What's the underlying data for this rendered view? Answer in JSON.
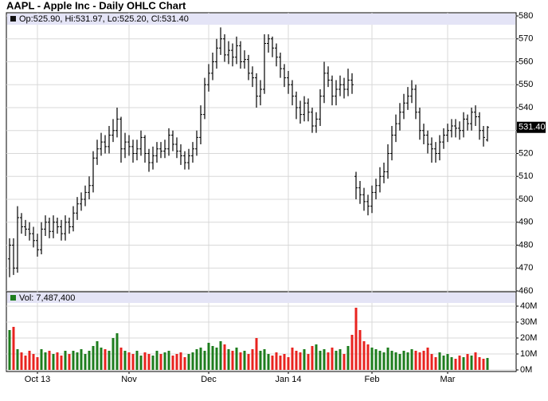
{
  "chart_data": [
    {
      "type": "ohlc",
      "title": "AAPL - Apple Inc - Daily OHLC Chart",
      "info": "Op:525.90, Hi:531.97, Lo:525.20, Cl:531.40",
      "last_label": "531.40",
      "ylim": [
        460,
        580
      ],
      "yticks": [
        460,
        470,
        480,
        490,
        500,
        510,
        520,
        530,
        540,
        550,
        560,
        570,
        580
      ],
      "color": "#000000",
      "grid": true,
      "open": [
        474,
        480,
        470,
        492,
        488,
        487,
        485,
        482,
        478,
        487,
        490,
        486,
        490,
        488,
        485,
        490,
        488,
        494,
        498,
        500,
        503,
        506,
        518,
        522,
        525,
        523,
        528,
        530,
        535,
        522,
        525,
        523,
        520,
        522,
        527,
        520,
        516,
        519,
        522,
        521,
        522,
        528,
        524,
        521,
        519,
        516,
        519,
        522,
        527,
        537,
        550,
        555,
        560,
        566,
        570,
        563,
        565,
        562,
        567,
        560,
        561,
        555,
        553,
        545,
        548,
        568,
        570,
        566,
        562,
        557,
        553,
        550,
        545,
        540,
        537,
        542,
        538,
        532,
        535,
        545,
        555,
        552,
        545,
        548,
        550,
        548,
        552,
        510,
        505,
        502,
        499,
        497,
        503,
        506,
        510,
        512,
        520,
        528,
        533,
        538,
        542,
        545,
        548,
        538,
        530,
        528,
        524,
        522,
        520,
        525,
        528,
        530,
        532,
        531,
        530,
        535,
        533,
        538,
        536,
        530,
        525.9
      ],
      "high": [
        483,
        483,
        497,
        494,
        491,
        490,
        488,
        485,
        490,
        493,
        492,
        493,
        492,
        491,
        493,
        492,
        497,
        501,
        503,
        506,
        510,
        521,
        526,
        529,
        528,
        532,
        535,
        540,
        536,
        529,
        528,
        526,
        526,
        530,
        528,
        522,
        523,
        525,
        525,
        526,
        531,
        530,
        527,
        524,
        521,
        522,
        525,
        530,
        541,
        553,
        559,
        564,
        570,
        575,
        572,
        569,
        568,
        571,
        569,
        565,
        563,
        558,
        555,
        552,
        572,
        572,
        571,
        568,
        564,
        559,
        556,
        552,
        547,
        543,
        545,
        544,
        540,
        538,
        548,
        560,
        558,
        554,
        552,
        554,
        553,
        557,
        555,
        512,
        508,
        505,
        502,
        506,
        509,
        514,
        516,
        524,
        532,
        537,
        542,
        546,
        549,
        552,
        550,
        540,
        533,
        530,
        527,
        525,
        528,
        531,
        533,
        535,
        535,
        534,
        538,
        537,
        540,
        541,
        538,
        532,
        531.97
      ],
      "low": [
        466,
        467,
        468,
        485,
        484,
        482,
        479,
        475,
        476,
        484,
        483,
        483,
        485,
        482,
        482,
        485,
        486,
        491,
        495,
        497,
        500,
        503,
        515,
        519,
        520,
        520,
        525,
        527,
        516,
        518,
        519,
        516,
        517,
        519,
        516,
        512,
        513,
        516,
        518,
        518,
        519,
        521,
        518,
        515,
        513,
        513,
        516,
        519,
        524,
        535,
        547,
        552,
        557,
        563,
        560,
        559,
        558,
        559,
        557,
        557,
        552,
        549,
        540,
        541,
        546,
        564,
        562,
        558,
        553,
        549,
        546,
        541,
        535,
        533,
        534,
        534,
        529,
        529,
        532,
        542,
        549,
        541,
        541,
        545,
        544,
        545,
        546,
        500,
        498,
        495,
        493,
        494,
        500,
        503,
        507,
        509,
        517,
        525,
        530,
        535,
        539,
        542,
        535,
        526,
        524,
        520,
        516,
        516,
        517,
        522,
        525,
        527,
        527,
        526,
        527,
        530,
        530,
        532,
        526,
        523,
        525.2
      ],
      "close": [
        480,
        470,
        492,
        488,
        487,
        485,
        482,
        478,
        487,
        490,
        486,
        490,
        488,
        485,
        490,
        488,
        494,
        498,
        500,
        503,
        506,
        518,
        522,
        525,
        523,
        528,
        530,
        535,
        522,
        525,
        523,
        520,
        522,
        527,
        520,
        516,
        519,
        522,
        521,
        522,
        528,
        524,
        521,
        519,
        516,
        519,
        522,
        527,
        537,
        550,
        555,
        560,
        566,
        570,
        563,
        565,
        562,
        567,
        560,
        561,
        555,
        553,
        545,
        548,
        568,
        570,
        566,
        562,
        557,
        553,
        550,
        545,
        540,
        537,
        542,
        538,
        532,
        535,
        545,
        555,
        552,
        545,
        548,
        550,
        548,
        552,
        550,
        505,
        502,
        499,
        497,
        503,
        506,
        510,
        512,
        520,
        528,
        533,
        538,
        542,
        545,
        548,
        538,
        530,
        528,
        524,
        522,
        520,
        525,
        528,
        530,
        532,
        531,
        530,
        535,
        533,
        538,
        536,
        530,
        527,
        531.4
      ]
    },
    {
      "type": "bar",
      "info": "Vol: 7,487,400",
      "ylim": [
        0,
        42
      ],
      "yticks": [
        {
          "value": 0,
          "label": "0M"
        },
        {
          "value": 10,
          "label": "10M"
        },
        {
          "value": 20,
          "label": "20M"
        },
        {
          "value": 30,
          "label": "30M"
        },
        {
          "value": 40,
          "label": "40M"
        }
      ],
      "up_color": "#1e7d1e",
      "down_color": "#e8231f",
      "grid": true,
      "categories": [
        null,
        null,
        null,
        null,
        null,
        null,
        null,
        "Oct 13",
        null,
        null,
        null,
        null,
        null,
        null,
        null,
        null,
        null,
        null,
        null,
        null,
        null,
        null,
        null,
        null,
        null,
        null,
        null,
        null,
        null,
        null,
        "Nov",
        null,
        null,
        null,
        null,
        null,
        null,
        null,
        null,
        null,
        null,
        null,
        null,
        null,
        null,
        null,
        null,
        null,
        null,
        null,
        "Dec",
        null,
        null,
        null,
        null,
        null,
        null,
        null,
        null,
        null,
        null,
        null,
        null,
        null,
        null,
        null,
        null,
        null,
        null,
        null,
        "Jan 14",
        null,
        null,
        null,
        null,
        null,
        null,
        null,
        null,
        null,
        null,
        null,
        null,
        null,
        null,
        null,
        null,
        null,
        null,
        null,
        null,
        "Feb",
        null,
        null,
        null,
        null,
        null,
        null,
        null,
        null,
        null,
        null,
        null,
        null,
        null,
        null,
        null,
        null,
        null,
        null,
        "Mar",
        null,
        null,
        null,
        null,
        null,
        null,
        null,
        null,
        null,
        null
      ],
      "values": [
        25,
        27,
        13,
        11,
        9,
        12,
        10,
        8,
        13,
        11,
        12,
        10,
        11,
        9,
        12,
        10,
        12,
        11,
        13,
        10,
        12,
        15,
        18,
        14,
        13,
        12,
        20,
        23,
        14,
        12,
        11,
        10,
        12,
        9,
        11,
        10,
        9,
        12,
        10,
        11,
        12,
        9,
        10,
        11,
        8,
        10,
        11,
        13,
        14,
        12,
        17,
        15,
        14,
        18,
        16,
        13,
        12,
        14,
        11,
        12,
        10,
        13,
        20,
        12,
        13,
        10,
        9,
        11,
        9,
        10,
        8,
        14,
        12,
        11,
        13,
        10,
        15,
        16,
        12,
        13,
        11,
        14,
        12,
        13,
        10,
        15,
        22,
        39,
        25,
        18,
        16,
        14,
        13,
        12,
        11,
        14,
        12,
        11,
        10,
        12,
        11,
        13,
        12,
        11,
        12,
        14,
        10,
        8,
        11,
        9,
        10,
        8,
        7,
        9,
        8,
        10,
        9,
        11,
        8,
        7,
        7.4874
      ]
    }
  ]
}
